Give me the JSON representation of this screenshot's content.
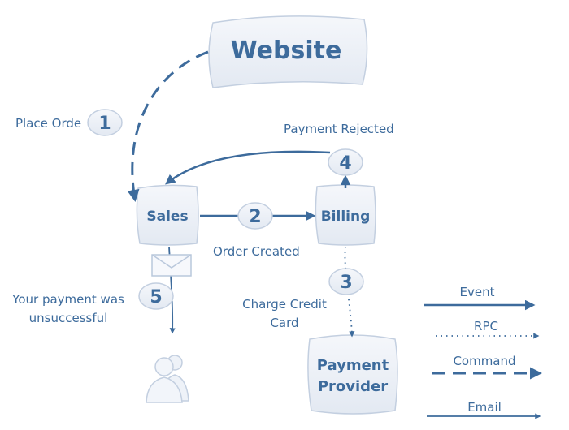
{
  "nodes": {
    "website": "Website",
    "sales": "Sales",
    "billing": "Billing",
    "payment_provider_line1": "Payment",
    "payment_provider_line2": "Provider"
  },
  "steps": {
    "s1": "1",
    "s2": "2",
    "s3": "3",
    "s4": "4",
    "s5": "5"
  },
  "labels": {
    "place_order": "Place Orde",
    "payment_rejected": "Payment Rejected",
    "order_created": "Order Created",
    "charge_line1": "Charge Credit",
    "charge_line2": "Card",
    "your_payment_line1": "Your payment was",
    "your_payment_line2": "unsuccessful"
  },
  "legend": {
    "event": "Event",
    "rpc": "RPC",
    "command": "Command",
    "email": "Email"
  },
  "icons": {
    "envelope": "envelope-icon",
    "user": "user-icon"
  },
  "colors": {
    "primary": "#3d6b9c",
    "node_fill": "#eef2f8",
    "node_stroke": "#b9c8dc"
  }
}
